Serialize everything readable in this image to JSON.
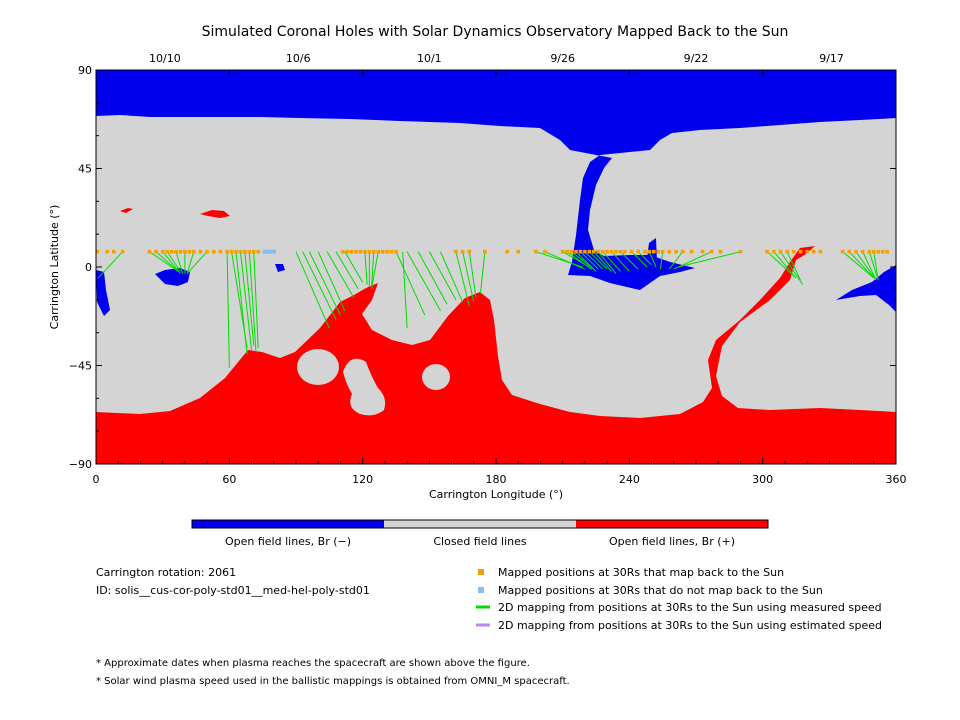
{
  "chart_data": {
    "type": "heatmap",
    "title": "Simulated Coronal Holes with Solar Dynamics Observatory Mapped Back to the Sun",
    "xlabel": "Carrington Longitude (°)",
    "ylabel": "Carrington Latitude (°)",
    "xlim": [
      0,
      360
    ],
    "ylim": [
      -90,
      90
    ],
    "x_ticks": [
      "0",
      "60",
      "120",
      "180",
      "240",
      "300",
      "360"
    ],
    "y_ticks": [
      "90",
      "45",
      "0",
      "−45",
      "−90"
    ],
    "top_date_labels": [
      {
        "label": "10/10",
        "lon": 31
      },
      {
        "label": "10/6",
        "lon": 91
      },
      {
        "label": "10/1",
        "lon": 150
      },
      {
        "label": "9/26",
        "lon": 210
      },
      {
        "label": "9/22",
        "lon": 270
      },
      {
        "label": "9/17",
        "lon": 331
      }
    ],
    "colorbar": {
      "segments": [
        {
          "label": "Open field lines, Br (−)",
          "color": "#0000ee"
        },
        {
          "label": "Closed field lines",
          "color": "#d4d4d4"
        },
        {
          "label": "Open field lines, Br (+)",
          "color": "#ff0000"
        }
      ]
    },
    "colors": {
      "negative_open": "#0000ee",
      "closed": "#d4d4d4",
      "positive_open": "#ff0000",
      "mapped": "#f5a000",
      "unmapped": "#88bbee",
      "measured_line": "#00dd00",
      "estimated_line": "#bb88ee"
    },
    "spacecraft_latitude": 7,
    "mapped_lons_30Rs": [
      0.5,
      5,
      8,
      12,
      24,
      27,
      30,
      32,
      34,
      36,
      38,
      40,
      42,
      44,
      47,
      50,
      53,
      56,
      59,
      61,
      63,
      65,
      67,
      69,
      71,
      73,
      111,
      113,
      115,
      117,
      119,
      121,
      123,
      125,
      127,
      129,
      131,
      133,
      135,
      162,
      165,
      168,
      175,
      185,
      190,
      198,
      202,
      210,
      212,
      214,
      216,
      218,
      220,
      222,
      224,
      226,
      228,
      230,
      232,
      234,
      236,
      238,
      241,
      244,
      247,
      249,
      251,
      253,
      255,
      258,
      261,
      264,
      268,
      273,
      277,
      281,
      290,
      302,
      305,
      308,
      311,
      314,
      317,
      320,
      323,
      326,
      336,
      339,
      342,
      345,
      348,
      350,
      352,
      354,
      356
    ],
    "unmapped_lons_30Rs": [
      76,
      78,
      80
    ],
    "field_line_pairs": [
      [
        12,
        1,
        -5
      ],
      [
        24,
        37,
        -2
      ],
      [
        27,
        37,
        -2
      ],
      [
        30,
        38,
        -3
      ],
      [
        32,
        38,
        -2
      ],
      [
        36,
        39,
        -3
      ],
      [
        40,
        40,
        -3
      ],
      [
        44,
        41,
        -3
      ],
      [
        50,
        41,
        -3
      ],
      [
        59,
        60,
        -46
      ],
      [
        61,
        68,
        -37
      ],
      [
        63,
        68,
        -40
      ],
      [
        65,
        70,
        -38
      ],
      [
        67,
        71,
        -36
      ],
      [
        69,
        72,
        -39
      ],
      [
        71,
        73,
        -37
      ],
      [
        90,
        105,
        -28
      ],
      [
        93,
        108,
        -24
      ],
      [
        96,
        110,
        -22
      ],
      [
        100,
        112,
        -20
      ],
      [
        104,
        116,
        -14
      ],
      [
        108,
        118,
        -10
      ],
      [
        112,
        120,
        -7
      ],
      [
        121,
        122,
        -8
      ],
      [
        123,
        123,
        -9
      ],
      [
        125,
        124,
        -9
      ],
      [
        127,
        124,
        -10
      ],
      [
        135,
        148,
        -22
      ],
      [
        140,
        155,
        -20
      ],
      [
        145,
        158,
        -17
      ],
      [
        150,
        162,
        -15
      ],
      [
        155,
        165,
        -16
      ],
      [
        162,
        168,
        -18
      ],
      [
        165,
        170,
        -16
      ],
      [
        168,
        171,
        -14
      ],
      [
        175,
        173,
        -12
      ],
      [
        138,
        140,
        -28
      ],
      [
        198,
        219,
        0
      ],
      [
        202,
        220,
        -1
      ],
      [
        210,
        222,
        0
      ],
      [
        212,
        223,
        -1
      ],
      [
        214,
        224,
        -1
      ],
      [
        216,
        225,
        -2
      ],
      [
        218,
        226,
        -1
      ],
      [
        220,
        228,
        -1
      ],
      [
        222,
        230,
        -1
      ],
      [
        224,
        232,
        -2
      ],
      [
        226,
        234,
        -3
      ],
      [
        228,
        236,
        -2
      ],
      [
        232,
        240,
        -2
      ],
      [
        236,
        244,
        -1
      ],
      [
        241,
        248,
        0
      ],
      [
        244,
        250,
        1
      ],
      [
        249,
        252,
        0
      ],
      [
        255,
        254,
        -1
      ],
      [
        264,
        258,
        -1
      ],
      [
        277,
        260,
        -1
      ],
      [
        290,
        262,
        0
      ],
      [
        302,
        315,
        -5
      ],
      [
        305,
        315,
        -5
      ],
      [
        308,
        318,
        -8
      ],
      [
        311,
        317,
        -6
      ],
      [
        336,
        350,
        -5
      ],
      [
        339,
        350,
        -5
      ],
      [
        342,
        351,
        -6
      ],
      [
        345,
        351,
        -6
      ],
      [
        348,
        352,
        -6
      ],
      [
        350,
        352,
        -6
      ]
    ],
    "carrington_rotation": "2061",
    "model_id": "solis__cus-cor-poly-std01__med-hel-poly-std01"
  },
  "legend": {
    "mapped": "Mapped positions at 30Rs that map back to the Sun",
    "unmapped": "Mapped positions at 30Rs that do not map back to the Sun",
    "measured": "2D mapping from positions at 30Rs to the Sun using measured speed",
    "estimated": "2D mapping from positions at 30Rs to the Sun using estimated speed"
  },
  "info": {
    "rotation": "Carrington rotation: 2061",
    "id": "ID: solis__cus-cor-poly-std01__med-hel-poly-std01"
  },
  "notes": {
    "note1": "* Approximate dates when plasma reaches the spacecraft are shown above the figure.",
    "note2": "* Solar wind plasma speed used in the ballistic mappings is obtained from OMNI_M spacecraft."
  }
}
